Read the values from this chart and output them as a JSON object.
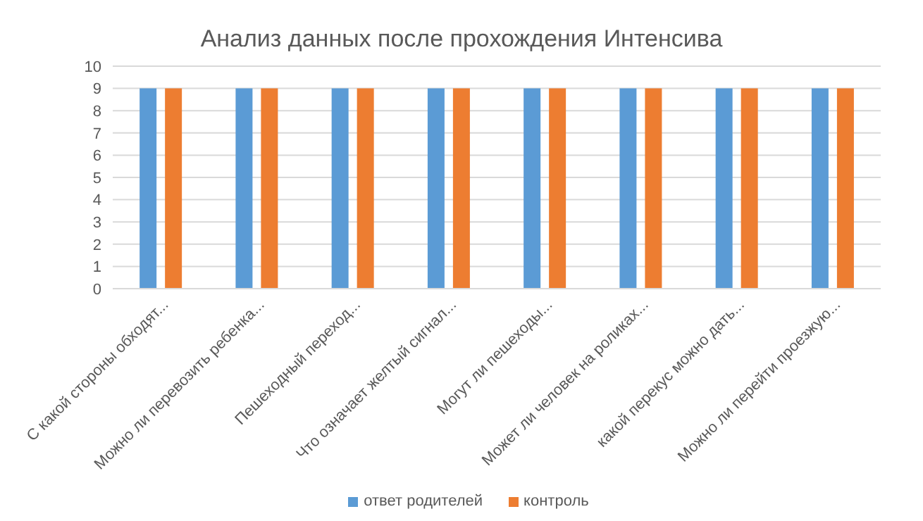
{
  "chart_data": {
    "type": "bar",
    "title": "Анализ данных после прохождения Интенсива",
    "categories": [
      "С какой стороны обходят...",
      "Можно ли перевозить ребенка...",
      "Пешеходный переход...",
      "Что означает желтый сигнал...",
      "Могут ли пешеходы...",
      "Может ли человек на роликах...",
      "какой перекус можно дать...",
      "Можно ли перейти проезжую..."
    ],
    "series": [
      {
        "name": "ответ родителей",
        "color": "#5b9bd5",
        "values": [
          9,
          9,
          9,
          9,
          9,
          9,
          9,
          9
        ]
      },
      {
        "name": "контроль",
        "color": "#ed7d31",
        "values": [
          9,
          9,
          9,
          9,
          9,
          9,
          9,
          9
        ]
      }
    ],
    "ylim": [
      0,
      10
    ],
    "yticks": [
      0,
      1,
      2,
      3,
      4,
      5,
      6,
      7,
      8,
      9,
      10
    ],
    "grid": "y",
    "legend": "bottom"
  }
}
